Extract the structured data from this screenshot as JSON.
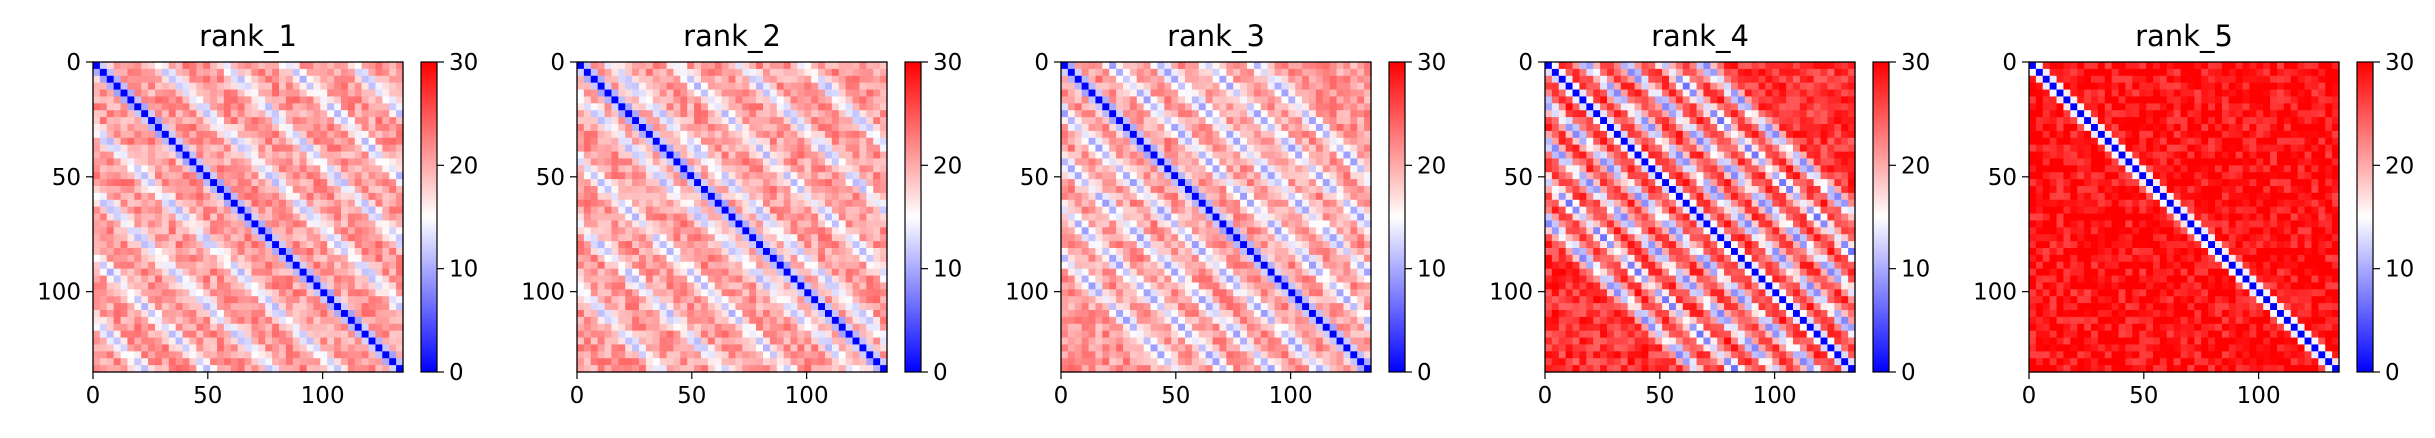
{
  "chart_data": [
    {
      "type": "heatmap",
      "title": "rank_1",
      "colormap": "bwr",
      "color_range": [
        0,
        30
      ],
      "colorbar_ticks": [
        "0",
        "10",
        "20",
        "30"
      ],
      "x_ticks": [
        "0",
        "50",
        "100"
      ],
      "y_ticks": [
        "0",
        "50",
        "100"
      ],
      "x_range": [
        0,
        135
      ],
      "y_range": [
        0,
        135
      ],
      "diagonal_value": 0,
      "background_level": 21,
      "band_offsets": [
        0,
        28,
        56,
        84,
        112
      ],
      "blob_level": 9,
      "contrast": 0.45
    },
    {
      "type": "heatmap",
      "title": "rank_2",
      "colormap": "bwr",
      "color_range": [
        0,
        30
      ],
      "colorbar_ticks": [
        "0",
        "10",
        "20",
        "30"
      ],
      "x_ticks": [
        "0",
        "50",
        "100"
      ],
      "y_ticks": [
        "0",
        "50",
        "100"
      ],
      "x_range": [
        0,
        135
      ],
      "y_range": [
        0,
        135
      ],
      "diagonal_value": 0,
      "background_level": 21,
      "band_offsets": [
        14,
        42,
        70,
        98
      ],
      "blob_level": 9,
      "contrast": 0.45
    },
    {
      "type": "heatmap",
      "title": "rank_3",
      "colormap": "bwr",
      "color_range": [
        0,
        30
      ],
      "colorbar_ticks": [
        "0",
        "10",
        "20",
        "30"
      ],
      "x_ticks": [
        "0",
        "50",
        "100"
      ],
      "y_ticks": [
        "0",
        "50",
        "100"
      ],
      "x_range": [
        0,
        135
      ],
      "y_range": [
        0,
        135
      ],
      "diagonal_value": 0,
      "background_level": 21,
      "band_offsets": [
        21,
        42,
        63,
        84
      ],
      "blob_level": 8,
      "contrast": 0.5
    },
    {
      "type": "heatmap",
      "title": "rank_4",
      "colormap": "bwr",
      "color_range": [
        0,
        30
      ],
      "colorbar_ticks": [
        "0",
        "10",
        "20",
        "30"
      ],
      "x_ticks": [
        "0",
        "50",
        "100"
      ],
      "y_ticks": [
        "0",
        "50",
        "100"
      ],
      "x_range": [
        0,
        135
      ],
      "y_range": [
        0,
        135
      ],
      "diagonal_value": 0,
      "background_level": 27,
      "band_offsets": [
        17,
        34,
        51,
        68
      ],
      "blob_level": 7,
      "contrast": 0.7
    },
    {
      "type": "heatmap",
      "title": "rank_5",
      "colormap": "bwr",
      "color_range": [
        0,
        30
      ],
      "colorbar_ticks": [
        "0",
        "10",
        "20",
        "30"
      ],
      "x_ticks": [
        "0",
        "50",
        "100"
      ],
      "y_ticks": [
        "0",
        "50",
        "100"
      ],
      "x_range": [
        0,
        135
      ],
      "y_range": [
        0,
        135
      ],
      "diagonal_value": 0,
      "background_level": 29,
      "band_offsets": [],
      "blob_level": 20,
      "contrast": 0.3
    }
  ]
}
